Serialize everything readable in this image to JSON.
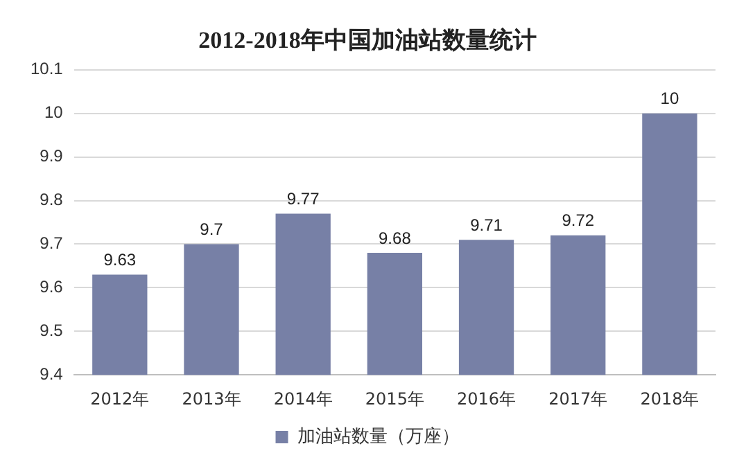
{
  "chart_data": {
    "type": "bar",
    "title": "2012-2018年中国加油站数量统计",
    "categories": [
      "2012年",
      "2013年",
      "2014年",
      "2015年",
      "2016年",
      "2017年",
      "2018年"
    ],
    "series": [
      {
        "name": "加油站数量（万座）",
        "color": "#7780a6",
        "values": [
          9.63,
          9.7,
          9.77,
          9.68,
          9.71,
          9.72,
          10
        ]
      }
    ],
    "ylim": [
      9.4,
      10.1
    ],
    "yticks": [
      9.4,
      9.5,
      9.6,
      9.7,
      9.8,
      9.9,
      10,
      10.1
    ],
    "grid": "y",
    "legend": "bottom",
    "data_labels": true
  }
}
